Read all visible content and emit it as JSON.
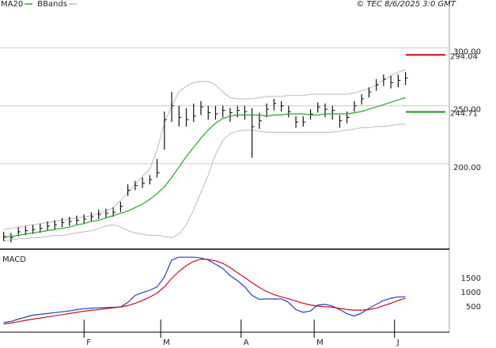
{
  "chart_data": [
    {
      "type": "ohlc",
      "source": "© TEC 8/6/2025 3:0 GMT",
      "x": [
        0,
        2,
        4,
        6,
        8,
        10,
        12,
        14,
        16,
        18,
        20,
        22,
        24,
        26,
        28,
        30,
        32,
        34,
        36,
        38,
        40,
        42,
        44,
        46,
        48,
        50,
        52,
        54,
        56,
        58,
        60,
        62,
        64,
        66,
        68,
        70,
        72,
        74,
        76,
        78,
        80,
        82,
        84,
        86,
        88,
        90,
        92,
        94,
        96,
        98,
        100,
        102,
        104,
        106,
        108,
        110
      ],
      "high": [
        141,
        140,
        145,
        146,
        147,
        148,
        150,
        151,
        153,
        154,
        155,
        156,
        158,
        160,
        161,
        162,
        167,
        182,
        185,
        188,
        190,
        204,
        245,
        262,
        250,
        248,
        252,
        254,
        250,
        250,
        250,
        248,
        250,
        250,
        248,
        244,
        252,
        256,
        254,
        250,
        241,
        241,
        247,
        253,
        252,
        250,
        242,
        245,
        254,
        260,
        266,
        273,
        277,
        276,
        277,
        279
      ],
      "low": [
        133,
        132,
        137,
        138,
        139,
        140,
        142,
        143,
        145,
        146,
        147,
        148,
        150,
        152,
        153,
        154,
        158,
        172,
        177,
        179,
        182,
        188,
        212,
        236,
        232,
        232,
        236,
        242,
        238,
        238,
        240,
        236,
        240,
        238,
        205,
        230,
        240,
        246,
        245,
        240,
        231,
        232,
        238,
        244,
        240,
        238,
        231,
        235,
        245,
        251,
        257,
        263,
        267,
        265,
        266,
        268
      ],
      "close": [
        137,
        136,
        141,
        142,
        143,
        144,
        146,
        147,
        149,
        150,
        151,
        152,
        154,
        156,
        157,
        158,
        163,
        177,
        181,
        183,
        186,
        192,
        238,
        250,
        240,
        238,
        241,
        249,
        244,
        243,
        246,
        244,
        246,
        245,
        232,
        237,
        247,
        252,
        250,
        245,
        236,
        236,
        243,
        249,
        247,
        246,
        237,
        240,
        250,
        256,
        262,
        268,
        273,
        270,
        272,
        274
      ],
      "color": "#111111",
      "series": [
        {
          "name": "MA20",
          "color": "#22aa22",
          "values": [
            136,
            137,
            138,
            139,
            140,
            141,
            142,
            143,
            144,
            145,
            147,
            148,
            150,
            151,
            153,
            155,
            157,
            159,
            162,
            165,
            169,
            174,
            180,
            188,
            197,
            206,
            214,
            222,
            229,
            235,
            239,
            241,
            242,
            242,
            242,
            242,
            241,
            242,
            242,
            243,
            243,
            243,
            242,
            242,
            243,
            243,
            243,
            243,
            244,
            245,
            247,
            249,
            251,
            253,
            255,
            257
          ]
        },
        {
          "name": "BBands",
          "color": "#bbbbbb",
          "upper": [
            143,
            144,
            145,
            146,
            147,
            148,
            149,
            150,
            151,
            152,
            153,
            154,
            155,
            157,
            159,
            162,
            168,
            175,
            182,
            189,
            195,
            212,
            235,
            250,
            262,
            267,
            270,
            271,
            271,
            268,
            262,
            257,
            256,
            256,
            256,
            257,
            258,
            258,
            258,
            259,
            259,
            259,
            260,
            260,
            260,
            260,
            260,
            260,
            261,
            263,
            265,
            268,
            272,
            276,
            279,
            281
          ],
          "lower": [
            133,
            134,
            135,
            135,
            136,
            136,
            137,
            138,
            138,
            139,
            140,
            141,
            142,
            144,
            146,
            147,
            145,
            142,
            140,
            139,
            138,
            138,
            137,
            136,
            139,
            147,
            160,
            175,
            190,
            208,
            220,
            226,
            228,
            229,
            229,
            228,
            227,
            227,
            227,
            227,
            227,
            227,
            227,
            227,
            227,
            227,
            228,
            229,
            230,
            231,
            231,
            232,
            232,
            233,
            234,
            234
          ]
        }
      ],
      "markers": [
        {
          "value": 294.04,
          "color": "#cc0000"
        },
        {
          "value": 244.71,
          "color": "#119911"
        }
      ],
      "xlim": [
        -1,
        122
      ],
      "ylim": [
        126,
        336
      ],
      "yticks": [
        {
          "value": 300,
          "label": "300.00"
        },
        {
          "value": 250,
          "label": "250.00"
        },
        {
          "value": 200,
          "label": "200.00"
        }
      ],
      "grid": true
    },
    {
      "type": "line",
      "title": "MACD",
      "x": [
        0,
        2,
        4,
        6,
        8,
        10,
        12,
        14,
        16,
        18,
        20,
        22,
        24,
        26,
        28,
        30,
        32,
        34,
        36,
        38,
        40,
        42,
        44,
        46,
        48,
        50,
        52,
        54,
        56,
        58,
        60,
        62,
        64,
        66,
        68,
        70,
        72,
        74,
        76,
        78,
        80,
        82,
        84,
        86,
        88,
        90,
        92,
        94,
        96,
        98,
        100,
        102,
        104,
        106,
        108,
        110
      ],
      "series": [
        {
          "color": "#1f3fd0",
          "values": [
            -60,
            -20,
            60,
            130,
            200,
            230,
            260,
            290,
            320,
            350,
            400,
            430,
            450,
            460,
            470,
            480,
            490,
            650,
            900,
            1000,
            1080,
            1200,
            1550,
            2150,
            2250,
            2250,
            2250,
            2220,
            2150,
            2000,
            1850,
            1600,
            1420,
            1200,
            900,
            760,
            780,
            770,
            780,
            650,
            400,
            300,
            350,
            560,
            580,
            520,
            400,
            250,
            170,
            280,
            440,
            580,
            720,
            800,
            850,
            850
          ]
        },
        {
          "color": "#cc1111",
          "values": [
            -110,
            -80,
            -30,
            20,
            60,
            100,
            140,
            180,
            220,
            260,
            300,
            340,
            370,
            400,
            430,
            460,
            490,
            540,
            620,
            720,
            840,
            980,
            1200,
            1500,
            1750,
            1950,
            2100,
            2180,
            2170,
            2120,
            2030,
            1880,
            1700,
            1530,
            1350,
            1180,
            1040,
            930,
            850,
            780,
            700,
            620,
            560,
            520,
            500,
            480,
            440,
            400,
            380,
            380,
            400,
            450,
            540,
            620,
            720,
            800
          ]
        }
      ],
      "xlim": [
        -1,
        122
      ],
      "ylim": [
        -400,
        2450
      ],
      "xticks": [
        {
          "value": 22,
          "label": "F"
        },
        {
          "value": 43,
          "label": "M"
        },
        {
          "value": 65,
          "label": "A"
        },
        {
          "value": 85,
          "label": "M"
        },
        {
          "value": 107,
          "label": "J"
        }
      ],
      "yticks": [
        500,
        1000,
        1500
      ],
      "grid": false
    }
  ]
}
